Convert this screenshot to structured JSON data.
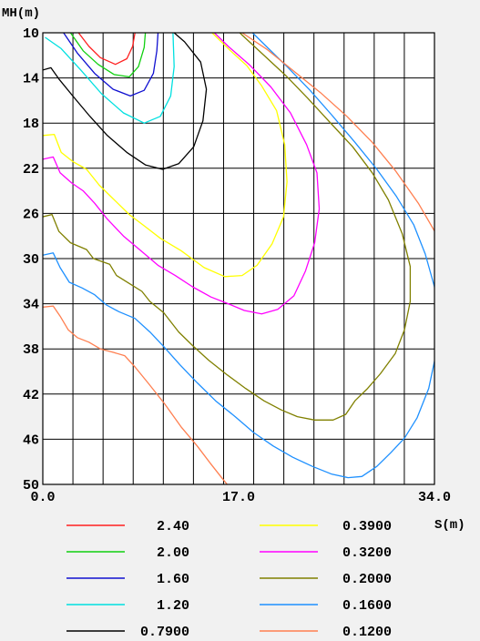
{
  "chart_data": {
    "type": "line",
    "subtype": "contour",
    "xlabel": "S(m)",
    "ylabel": "MH(m)",
    "xlim": [
      0,
      34
    ],
    "ylim": [
      10,
      50
    ],
    "y_inverted": true,
    "x_ticks": [
      "0.0",
      "17.0",
      "34.0"
    ],
    "y_ticks": [
      "10",
      "14",
      "18",
      "22",
      "26",
      "30",
      "34",
      "38",
      "42",
      "46",
      "50"
    ],
    "grid": true,
    "legend_position": "bottom",
    "series": [
      {
        "name": "2.40",
        "color": "#ff2020",
        "points": [
          [
            3.1,
            10
          ],
          [
            4.0,
            11.2
          ],
          [
            5.0,
            12.2
          ],
          [
            6.3,
            12.8
          ],
          [
            7.3,
            12.3
          ],
          [
            7.8,
            11.2
          ],
          [
            8.0,
            10
          ]
        ]
      },
      {
        "name": "2.00",
        "color": "#10d010",
        "points": [
          [
            2.4,
            10
          ],
          [
            3.5,
            11.6
          ],
          [
            4.8,
            12.8
          ],
          [
            6.2,
            13.7
          ],
          [
            7.5,
            13.9
          ],
          [
            8.3,
            13.0
          ],
          [
            8.8,
            11.3
          ],
          [
            8.9,
            10
          ]
        ]
      },
      {
        "name": "1.60",
        "color": "#1010d0",
        "points": [
          [
            1.8,
            10
          ],
          [
            3.0,
            11.8
          ],
          [
            4.5,
            13.6
          ],
          [
            6.1,
            15.0
          ],
          [
            7.6,
            15.6
          ],
          [
            8.8,
            15.1
          ],
          [
            9.6,
            13.6
          ],
          [
            9.9,
            11.6
          ],
          [
            10.0,
            10
          ]
        ]
      },
      {
        "name": "1.20",
        "color": "#00e0e0",
        "points": [
          [
            0.2,
            10.4
          ],
          [
            1.6,
            11.4
          ],
          [
            3.3,
            13.3
          ],
          [
            5.1,
            15.4
          ],
          [
            7.0,
            17.1
          ],
          [
            8.8,
            18.0
          ],
          [
            10.2,
            17.4
          ],
          [
            11.1,
            15.6
          ],
          [
            11.4,
            13.0
          ],
          [
            11.3,
            10
          ]
        ]
      },
      {
        "name": "0.7900",
        "color": "#000000",
        "points": [
          [
            0,
            13.3
          ],
          [
            0.7,
            13.1
          ],
          [
            1.4,
            14.1
          ],
          [
            2.6,
            15.6
          ],
          [
            4.0,
            17.3
          ],
          [
            5.6,
            19.1
          ],
          [
            7.3,
            20.6
          ],
          [
            8.9,
            21.7
          ],
          [
            10.4,
            22.1
          ],
          [
            11.8,
            21.6
          ],
          [
            13.1,
            20.1
          ],
          [
            13.9,
            17.8
          ],
          [
            14.2,
            15.0
          ],
          [
            13.7,
            12.6
          ],
          [
            12.3,
            10.8
          ],
          [
            11.4,
            10
          ]
        ]
      },
      {
        "name": "0.3900",
        "color": "#ffff00",
        "points": [
          [
            0,
            19.1
          ],
          [
            1.0,
            19.0
          ],
          [
            1.6,
            20.6
          ],
          [
            2.6,
            21.4
          ],
          [
            3.8,
            22.1
          ],
          [
            4.9,
            23.5
          ],
          [
            6.0,
            24.6
          ],
          [
            7.5,
            26.1
          ],
          [
            8.8,
            27.1
          ],
          [
            10.2,
            28.2
          ],
          [
            12.0,
            29.3
          ],
          [
            14.0,
            30.8
          ],
          [
            15.8,
            31.6
          ],
          [
            17.3,
            31.5
          ],
          [
            18.6,
            30.6
          ],
          [
            19.9,
            28.7
          ],
          [
            20.9,
            26.3
          ],
          [
            21.2,
            23.2
          ],
          [
            21.0,
            19.9
          ],
          [
            20.3,
            16.9
          ],
          [
            19.0,
            14.7
          ],
          [
            17.7,
            12.9
          ],
          [
            16.3,
            11.6
          ],
          [
            14.7,
            10
          ]
        ]
      },
      {
        "name": "0.3200",
        "color": "#ff00ff",
        "points": [
          [
            0,
            21.2
          ],
          [
            0.9,
            21.0
          ],
          [
            1.5,
            22.4
          ],
          [
            2.5,
            23.3
          ],
          [
            3.5,
            24.0
          ],
          [
            4.5,
            25.1
          ],
          [
            5.6,
            26.5
          ],
          [
            7.0,
            28.0
          ],
          [
            8.4,
            29.2
          ],
          [
            10.0,
            30.6
          ],
          [
            11.5,
            31.5
          ],
          [
            13.0,
            32.5
          ],
          [
            14.6,
            33.4
          ],
          [
            16.1,
            34.0
          ],
          [
            17.5,
            34.6
          ],
          [
            19.0,
            34.9
          ],
          [
            20.4,
            34.5
          ],
          [
            21.8,
            33.3
          ],
          [
            22.8,
            31.1
          ],
          [
            23.6,
            28.6
          ],
          [
            24.0,
            25.6
          ],
          [
            23.8,
            22.4
          ],
          [
            22.9,
            19.9
          ],
          [
            21.5,
            17.1
          ],
          [
            19.8,
            14.8
          ],
          [
            17.9,
            12.8
          ],
          [
            16.1,
            11.2
          ],
          [
            14.9,
            10
          ]
        ]
      },
      {
        "name": "0.2000",
        "color": "#808000",
        "points": [
          [
            0,
            26.3
          ],
          [
            0.8,
            26.1
          ],
          [
            1.4,
            27.6
          ],
          [
            2.4,
            28.6
          ],
          [
            3.8,
            29.2
          ],
          [
            4.4,
            30.0
          ],
          [
            5.8,
            30.5
          ],
          [
            6.4,
            31.5
          ],
          [
            7.5,
            32.2
          ],
          [
            8.6,
            32.9
          ],
          [
            9.3,
            33.8
          ],
          [
            10.5,
            34.8
          ],
          [
            11.8,
            36.5
          ],
          [
            13.0,
            37.7
          ],
          [
            14.4,
            39.0
          ],
          [
            16.0,
            40.3
          ],
          [
            17.6,
            41.5
          ],
          [
            19.2,
            42.6
          ],
          [
            20.7,
            43.4
          ],
          [
            22.1,
            44.0
          ],
          [
            23.6,
            44.3
          ],
          [
            25.2,
            44.3
          ],
          [
            26.3,
            43.8
          ],
          [
            27.1,
            42.6
          ],
          [
            28.2,
            41.5
          ],
          [
            29.3,
            40.2
          ],
          [
            30.6,
            38.4
          ],
          [
            31.4,
            36.3
          ],
          [
            31.9,
            33.8
          ],
          [
            31.9,
            30.7
          ],
          [
            31.2,
            27.8
          ],
          [
            30.0,
            24.8
          ],
          [
            28.6,
            22.4
          ],
          [
            26.9,
            20.1
          ],
          [
            24.9,
            17.9
          ],
          [
            23.0,
            15.8
          ],
          [
            21.1,
            13.8
          ],
          [
            19.1,
            11.9
          ],
          [
            17.3,
            10.2
          ],
          [
            17.1,
            10
          ]
        ]
      },
      {
        "name": "0.1600",
        "color": "#1e90ff",
        "points": [
          [
            0,
            29.7
          ],
          [
            0.9,
            29.5
          ],
          [
            1.5,
            30.8
          ],
          [
            2.3,
            32.1
          ],
          [
            3.4,
            32.6
          ],
          [
            4.5,
            33.2
          ],
          [
            5.5,
            34.1
          ],
          [
            6.6,
            34.7
          ],
          [
            8.0,
            35.3
          ],
          [
            9.3,
            36.5
          ],
          [
            10.5,
            37.8
          ],
          [
            11.9,
            39.4
          ],
          [
            13.4,
            41.0
          ],
          [
            15.0,
            42.6
          ],
          [
            16.7,
            44.0
          ],
          [
            18.3,
            45.4
          ],
          [
            20.0,
            46.6
          ],
          [
            21.7,
            47.6
          ],
          [
            23.4,
            48.4
          ],
          [
            25.1,
            49.1
          ],
          [
            26.5,
            49.4
          ],
          [
            27.7,
            49.3
          ],
          [
            29.0,
            48.4
          ],
          [
            30.2,
            47.2
          ],
          [
            31.4,
            45.9
          ],
          [
            32.5,
            44.1
          ],
          [
            33.5,
            41.5
          ],
          [
            34.1,
            38.6
          ],
          [
            34.3,
            35.5
          ],
          [
            34.0,
            32.5
          ],
          [
            33.2,
            29.6
          ],
          [
            32.2,
            27.0
          ],
          [
            30.7,
            24.5
          ],
          [
            29.0,
            22.1
          ],
          [
            27.1,
            19.7
          ],
          [
            25.1,
            17.3
          ],
          [
            23.2,
            15.1
          ],
          [
            21.3,
            13.1
          ],
          [
            19.5,
            11.3
          ],
          [
            18.2,
            10
          ]
        ]
      },
      {
        "name": "0.1200",
        "color": "#ff7f50",
        "points": [
          [
            0,
            34.3
          ],
          [
            0.9,
            34.2
          ],
          [
            1.5,
            35.1
          ],
          [
            2.2,
            36.3
          ],
          [
            3.0,
            37.0
          ],
          [
            4.0,
            37.4
          ],
          [
            5.0,
            38.0
          ],
          [
            6.1,
            38.3
          ],
          [
            7.1,
            38.6
          ],
          [
            8.0,
            39.6
          ],
          [
            9.2,
            41.1
          ],
          [
            10.6,
            42.9
          ],
          [
            12.0,
            44.9
          ],
          [
            13.4,
            46.6
          ],
          [
            14.6,
            48.2
          ],
          [
            15.6,
            49.5
          ],
          [
            16.0,
            50
          ]
        ]
      },
      {
        "name": "",
        "color": "#ff7f50",
        "points": [
          [
            17.3,
            10
          ],
          [
            19.5,
            11.5
          ],
          [
            21.8,
            13.4
          ],
          [
            24.1,
            15.3
          ],
          [
            26.4,
            17.4
          ],
          [
            28.6,
            19.7
          ],
          [
            30.6,
            22.2
          ],
          [
            32.6,
            25.1
          ],
          [
            34.2,
            27.9
          ],
          [
            35.0,
            29.2
          ]
        ]
      }
    ]
  }
}
